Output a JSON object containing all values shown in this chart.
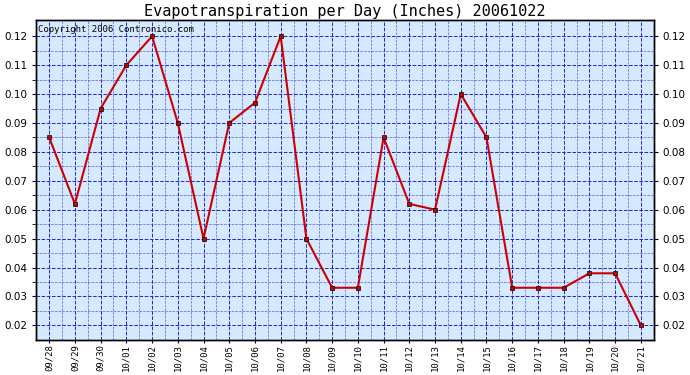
{
  "title": "Evapotranspiration per Day (Inches) 20061022",
  "copyright": "Copyright 2006 Contronico.com",
  "x_labels": [
    "09/28",
    "09/29",
    "09/30",
    "10/01",
    "10/02",
    "10/03",
    "10/04",
    "10/05",
    "10/06",
    "10/07",
    "10/08",
    "10/09",
    "10/10",
    "10/11",
    "10/12",
    "10/13",
    "10/14",
    "10/15",
    "10/16",
    "10/17",
    "10/18",
    "10/19",
    "10/20",
    "10/21"
  ],
  "y_values": [
    0.085,
    0.062,
    0.095,
    0.11,
    0.12,
    0.09,
    0.05,
    0.09,
    0.097,
    0.12,
    0.05,
    0.033,
    0.033,
    0.085,
    0.062,
    0.06,
    0.1,
    0.085,
    0.033,
    0.033,
    0.033,
    0.038,
    0.038,
    0.02
  ],
  "line_color": "#cc0000",
  "marker_color": "#cc0000",
  "marker_edge_color": "#000000",
  "bg_color": "#d6eaff",
  "fig_bg_color": "#ffffff",
  "grid_color": "#2222cc",
  "ylim_min": 0.015,
  "ylim_max": 0.1255,
  "ytick_values": [
    0.02,
    0.03,
    0.04,
    0.05,
    0.06,
    0.07,
    0.08,
    0.09,
    0.1,
    0.11,
    0.12
  ],
  "title_fontsize": 11,
  "copyright_fontsize": 6.5,
  "tick_fontsize": 7.5,
  "xtick_fontsize": 6.5
}
